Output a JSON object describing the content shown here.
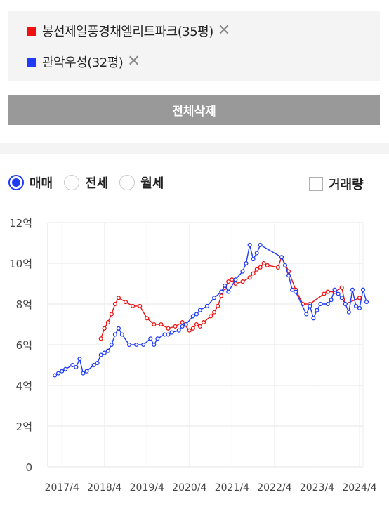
{
  "compare": {
    "items": [
      {
        "label": "봉선제일풍경채엘리트파크(35평)",
        "color": "#ee1111",
        "remove_icon": "close-icon"
      },
      {
        "label": "관악우성(32평)",
        "color": "#1f3bf5",
        "remove_icon": "close-icon"
      }
    ],
    "delete_all_label": "전체삭제"
  },
  "deal_types": [
    {
      "label": "매매",
      "selected": true
    },
    {
      "label": "전세",
      "selected": false
    },
    {
      "label": "월세",
      "selected": false
    }
  ],
  "volume_toggle": {
    "label": "거래량",
    "checked": false
  },
  "chart_data": {
    "type": "line",
    "x_ticks": [
      "2017/4",
      "2018/4",
      "2019/4",
      "2020/4",
      "2021/4",
      "2022/4",
      "2023/4",
      "2024/4"
    ],
    "y_ticks": [
      "0",
      "2억",
      "4억",
      "6억",
      "8억",
      "10억",
      "12억"
    ],
    "ylim": [
      0,
      12
    ],
    "xlim": [
      "2016/12",
      "2024/5"
    ],
    "grid": true,
    "series": [
      {
        "name": "봉선제일풍경채엘리트파크(35평)",
        "color": "#ee1111",
        "points": [
          [
            "2018/3",
            6.3
          ],
          [
            "2018/4",
            6.8
          ],
          [
            "2018/5",
            7.1
          ],
          [
            "2018/6",
            7.5
          ],
          [
            "2018/7",
            8.0
          ],
          [
            "2018/8",
            8.3
          ],
          [
            "2018/10",
            8.1
          ],
          [
            "2018/12",
            7.9
          ],
          [
            "2019/2",
            7.9
          ],
          [
            "2019/4",
            7.3
          ],
          [
            "2019/6",
            7.0
          ],
          [
            "2019/8",
            7.0
          ],
          [
            "2019/10",
            6.8
          ],
          [
            "2019/12",
            6.9
          ],
          [
            "2020/2",
            7.1
          ],
          [
            "2020/4",
            6.7
          ],
          [
            "2020/5",
            6.8
          ],
          [
            "2020/6",
            7.0
          ],
          [
            "2020/7",
            6.9
          ],
          [
            "2020/8",
            7.1
          ],
          [
            "2020/10",
            7.4
          ],
          [
            "2020/11",
            7.6
          ],
          [
            "2020/12",
            7.9
          ],
          [
            "2021/1",
            8.4
          ],
          [
            "2021/2",
            8.8
          ],
          [
            "2021/3",
            9.1
          ],
          [
            "2021/4",
            9.2
          ],
          [
            "2021/5",
            9.0
          ],
          [
            "2021/7",
            9.1
          ],
          [
            "2021/9",
            9.3
          ],
          [
            "2021/10",
            9.5
          ],
          [
            "2021/11",
            9.7
          ],
          [
            "2021/12",
            9.8
          ],
          [
            "2022/1",
            10.0
          ],
          [
            "2022/2",
            9.9
          ],
          [
            "2022/5",
            9.8
          ],
          [
            "2022/6",
            10.3
          ],
          [
            "2022/8",
            9.6
          ],
          [
            "2022/10",
            8.7
          ],
          [
            "2022/12",
            8.0
          ],
          [
            "2023/2",
            8.0
          ],
          [
            "2023/6",
            8.5
          ],
          [
            "2023/7",
            8.6
          ],
          [
            "2023/9",
            8.6
          ],
          [
            "2023/11",
            8.8
          ],
          [
            "2023/12",
            8.0
          ],
          [
            "2024/4",
            8.3
          ]
        ]
      },
      {
        "name": "관악우성(32평)",
        "color": "#1f3bf5",
        "points": [
          [
            "2017/2",
            4.5
          ],
          [
            "2017/3",
            4.6
          ],
          [
            "2017/4",
            4.7
          ],
          [
            "2017/5",
            4.8
          ],
          [
            "2017/7",
            5.0
          ],
          [
            "2017/8",
            4.9
          ],
          [
            "2017/9",
            5.3
          ],
          [
            "2017/10",
            4.6
          ],
          [
            "2017/11",
            4.7
          ],
          [
            "2018/1",
            5.0
          ],
          [
            "2018/2",
            5.1
          ],
          [
            "2018/3",
            5.5
          ],
          [
            "2018/4",
            5.6
          ],
          [
            "2018/5",
            5.7
          ],
          [
            "2018/6",
            6.0
          ],
          [
            "2018/7",
            6.5
          ],
          [
            "2018/8",
            6.8
          ],
          [
            "2018/9",
            6.5
          ],
          [
            "2018/11",
            6.0
          ],
          [
            "2019/1",
            6.0
          ],
          [
            "2019/3",
            6.0
          ],
          [
            "2019/5",
            6.3
          ],
          [
            "2019/6",
            6.0
          ],
          [
            "2019/7",
            6.3
          ],
          [
            "2019/9",
            6.5
          ],
          [
            "2019/10",
            6.5
          ],
          [
            "2019/11",
            6.6
          ],
          [
            "2020/1",
            6.7
          ],
          [
            "2020/2",
            6.9
          ],
          [
            "2020/3",
            7.0
          ],
          [
            "2020/5",
            7.4
          ],
          [
            "2020/6",
            7.5
          ],
          [
            "2020/7",
            7.7
          ],
          [
            "2020/9",
            7.9
          ],
          [
            "2020/11",
            8.3
          ],
          [
            "2021/1",
            8.6
          ],
          [
            "2021/2",
            8.9
          ],
          [
            "2021/3",
            8.6
          ],
          [
            "2021/5",
            9.2
          ],
          [
            "2021/7",
            9.6
          ],
          [
            "2021/8",
            10.0
          ],
          [
            "2021/9",
            10.9
          ],
          [
            "2021/10",
            10.2
          ],
          [
            "2021/11",
            10.5
          ],
          [
            "2021/12",
            10.9
          ],
          [
            "2022/6",
            10.3
          ],
          [
            "2022/7",
            9.9
          ],
          [
            "2022/8",
            9.4
          ],
          [
            "2022/9",
            8.7
          ],
          [
            "2022/10",
            8.6
          ],
          [
            "2023/1",
            7.5
          ],
          [
            "2023/2",
            7.9
          ],
          [
            "2023/3",
            7.3
          ],
          [
            "2023/4",
            7.7
          ],
          [
            "2023/5",
            8.0
          ],
          [
            "2023/7",
            8.0
          ],
          [
            "2023/8",
            8.2
          ],
          [
            "2023/9",
            8.7
          ],
          [
            "2023/10",
            8.5
          ],
          [
            "2023/11",
            8.3
          ],
          [
            "2023/12",
            8.0
          ],
          [
            "2024/1",
            7.6
          ],
          [
            "2024/2",
            8.7
          ],
          [
            "2024/3",
            7.9
          ],
          [
            "2024/4",
            7.8
          ],
          [
            "2024/5",
            8.7
          ],
          [
            "2024/6",
            8.1
          ]
        ]
      }
    ]
  }
}
